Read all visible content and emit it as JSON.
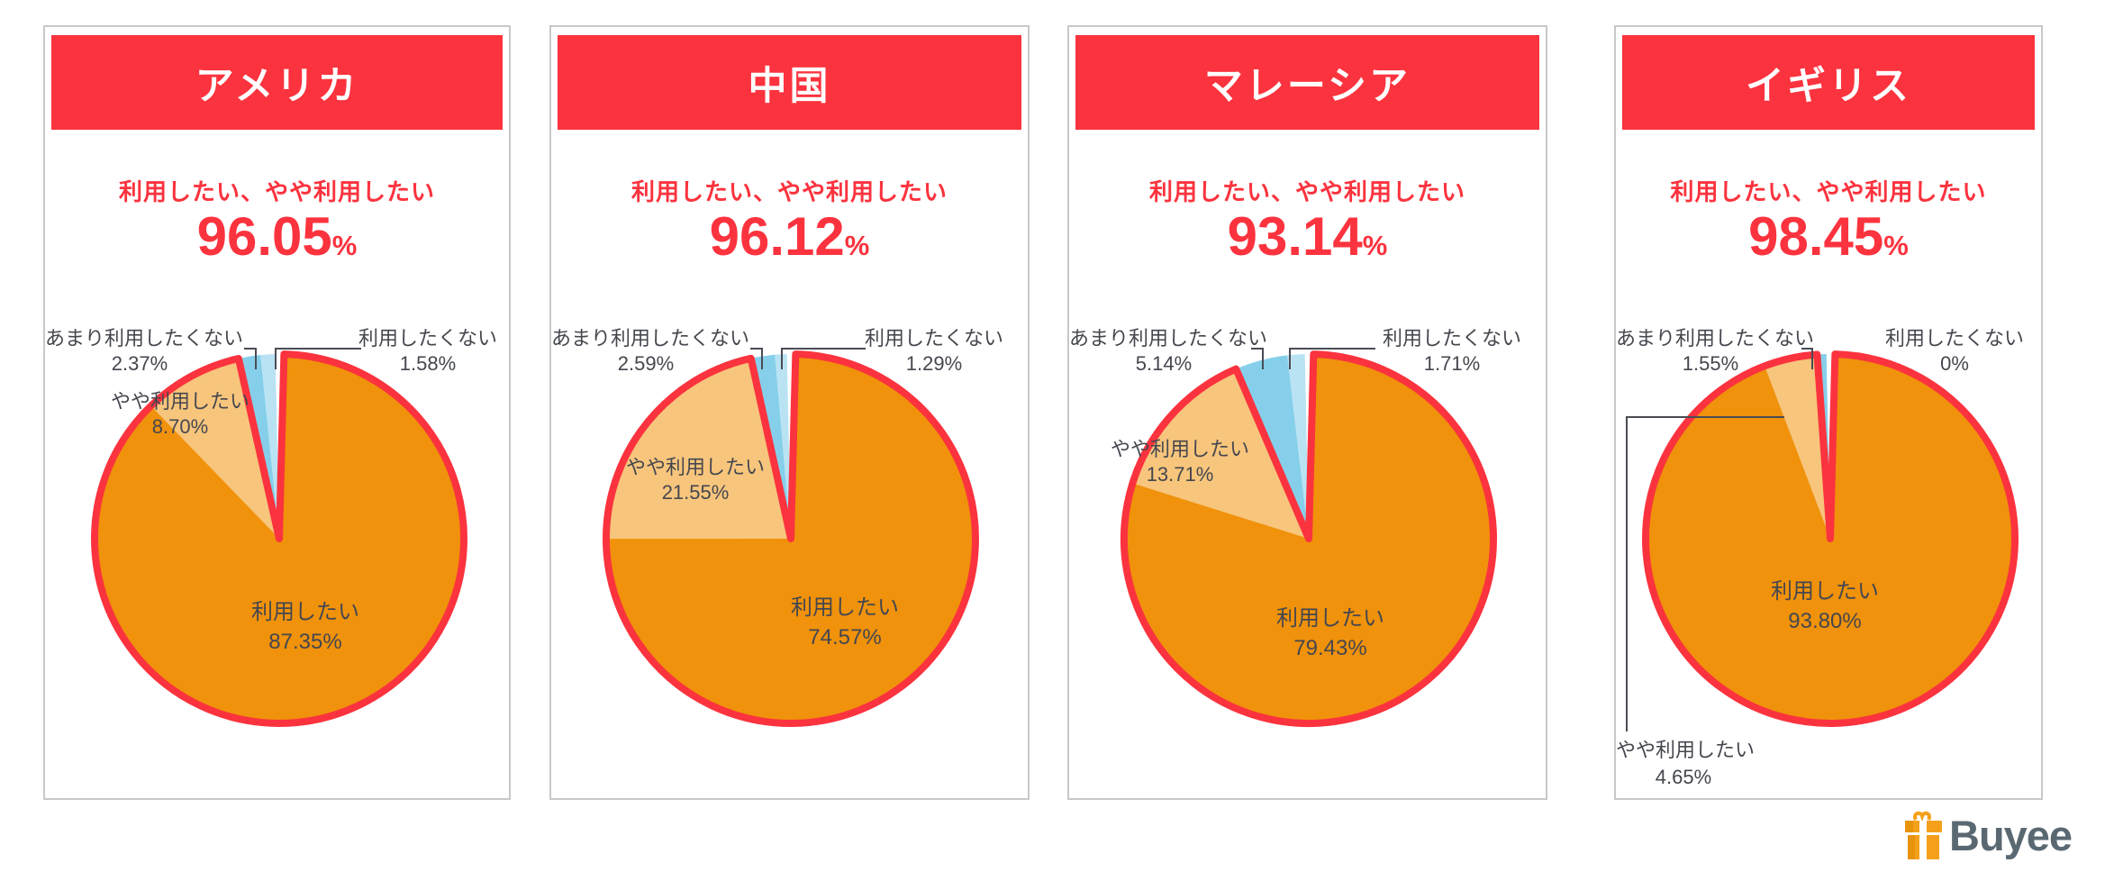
{
  "colors": {
    "red": "#FB333E",
    "orange": "#F0920B",
    "light_orange": "#F7C57C",
    "sky_blue": "#86CFEA",
    "pale_blue": "#B9E3F3",
    "text_dark": "#45474F",
    "panel_border": "#C8C8C8",
    "logo_text_color": "#5A6872",
    "logo_orange": "#F5A01A"
  },
  "logo": {
    "text": "Buyee"
  },
  "chart_data": [
    {
      "type": "pie",
      "title": "アメリカ",
      "subtitle": "利用したい、やや利用したい",
      "total_positive": "96.05",
      "unit": "%",
      "legend_position": "callout-labels",
      "slices": [
        {
          "label": "利用したい",
          "value": 87.35,
          "display": "87.35%"
        },
        {
          "label": "やや利用したい",
          "value": 8.7,
          "display": "8.70%"
        },
        {
          "label": "あまり利用したくない",
          "value": 2.37,
          "display": "2.37%"
        },
        {
          "label": "利用したくない",
          "value": 1.58,
          "display": "1.58%"
        }
      ]
    },
    {
      "type": "pie",
      "title": "中国",
      "subtitle": "利用したい、やや利用したい",
      "total_positive": "96.12",
      "unit": "%",
      "legend_position": "callout-labels",
      "slices": [
        {
          "label": "利用したい",
          "value": 74.57,
          "display": "74.57%"
        },
        {
          "label": "やや利用したい",
          "value": 21.55,
          "display": "21.55%"
        },
        {
          "label": "あまり利用したくない",
          "value": 2.59,
          "display": "2.59%"
        },
        {
          "label": "利用したくない",
          "value": 1.29,
          "display": "1.29%"
        }
      ]
    },
    {
      "type": "pie",
      "title": "マレーシア",
      "subtitle": "利用したい、やや利用したい",
      "total_positive": "93.14",
      "unit": "%",
      "legend_position": "callout-labels",
      "slices": [
        {
          "label": "利用したい",
          "value": 79.43,
          "display": "79.43%"
        },
        {
          "label": "やや利用したい",
          "value": 13.71,
          "display": "13.71%"
        },
        {
          "label": "あまり利用したくない",
          "value": 5.14,
          "display": "5.14%"
        },
        {
          "label": "利用したくない",
          "value": 1.71,
          "display": "1.71%"
        }
      ]
    },
    {
      "type": "pie",
      "title": "イギリス",
      "subtitle": "利用したい、やや利用したい",
      "total_positive": "98.45",
      "unit": "%",
      "legend_position": "callout-labels",
      "slices": [
        {
          "label": "利用したい",
          "value": 93.8,
          "display": "93.80%"
        },
        {
          "label": "やや利用したい",
          "value": 4.65,
          "display": "4.65%"
        },
        {
          "label": "あまり利用したくない",
          "value": 1.55,
          "display": "1.55%"
        },
        {
          "label": "利用したくない",
          "value": 0,
          "display": "0%"
        }
      ]
    }
  ]
}
